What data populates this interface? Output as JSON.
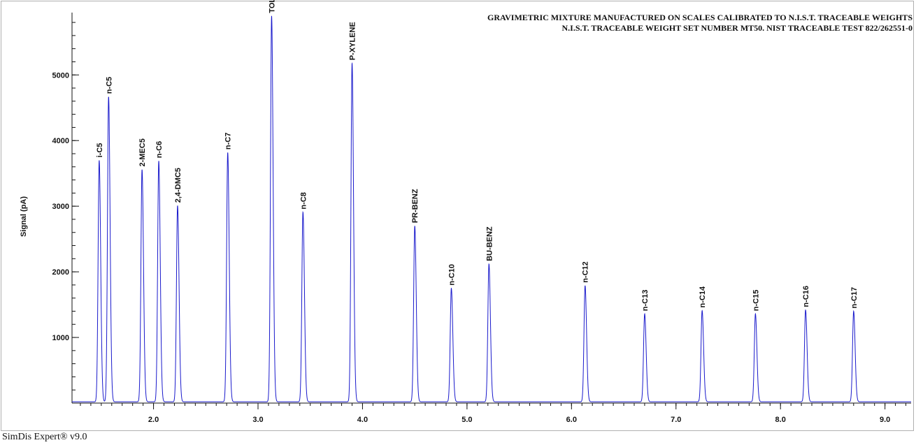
{
  "chart_data": {
    "type": "line",
    "title": "GRAVIMETRIC MIXTURE MANUFACTURED ON SCALES CALIBRATED TO N.I.S.T. TRACEABLE WEIGHTS",
    "subtitle": "N.I.S.T. TRACEABLE WEIGHT SET NUMBER MT50. NIST TRACEABLE TEST 822/262551-0",
    "xlabel": "",
    "ylabel": "Signal (pA)",
    "xlim": [
      1.22,
      9.25
    ],
    "ylim": [
      0,
      5950
    ],
    "x_ticks": [
      "2.0",
      "3.0",
      "4.0",
      "5.0",
      "6.0",
      "7.0",
      "8.0",
      "9.0"
    ],
    "x_tick_values": [
      2.0,
      3.0,
      4.0,
      5.0,
      6.0,
      7.0,
      8.0,
      9.0
    ],
    "y_ticks": [
      "1000",
      "2000",
      "3000",
      "4000",
      "5000"
    ],
    "y_tick_values": [
      1000,
      2000,
      3000,
      4000,
      5000
    ],
    "line_color": "#1a1acc",
    "baseline": 20,
    "peaks": [
      {
        "label": "i-C5",
        "x": 1.48,
        "y": 3700
      },
      {
        "label": "n-C5",
        "x": 1.57,
        "y": 4670
      },
      {
        "label": "2-MEC5",
        "x": 1.89,
        "y": 3560
      },
      {
        "label": "n-C6",
        "x": 2.05,
        "y": 3690
      },
      {
        "label": "2,4-DMC5",
        "x": 2.23,
        "y": 3010
      },
      {
        "label": "n-C7",
        "x": 2.71,
        "y": 3820
      },
      {
        "label": "TOLUENE",
        "x": 3.13,
        "y": 5900
      },
      {
        "label": "n-C8",
        "x": 3.43,
        "y": 2910
      },
      {
        "label": "P-XYLENE",
        "x": 3.9,
        "y": 5180
      },
      {
        "label": "PR-BENZ",
        "x": 4.5,
        "y": 2700
      },
      {
        "label": "n-C10",
        "x": 4.85,
        "y": 1750
      },
      {
        "label": "BU-BENZ",
        "x": 5.21,
        "y": 2120
      },
      {
        "label": "n-C12",
        "x": 6.13,
        "y": 1790
      },
      {
        "label": "n-C13",
        "x": 6.7,
        "y": 1360
      },
      {
        "label": "n-C14",
        "x": 7.25,
        "y": 1410
      },
      {
        "label": "n-C15",
        "x": 7.76,
        "y": 1360
      },
      {
        "label": "n-C16",
        "x": 8.24,
        "y": 1420
      },
      {
        "label": "n-C17",
        "x": 8.7,
        "y": 1400
      }
    ]
  },
  "footer": {
    "text": "SimDis Expert® v9.0"
  }
}
